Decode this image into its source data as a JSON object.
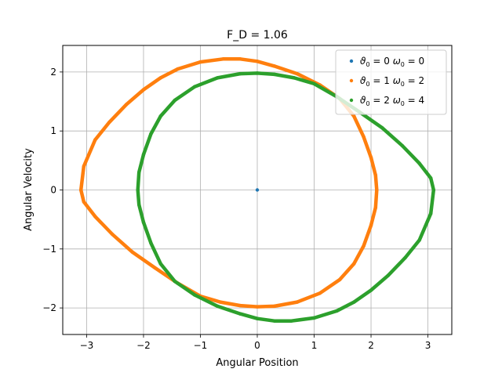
{
  "chart_data": {
    "type": "scatter",
    "title": "F_D = 1.06",
    "xlabel": "Angular Position",
    "ylabel": "Angular Velocity",
    "xlim": [
      -3.42,
      3.42
    ],
    "ylim": [
      -2.45,
      2.45
    ],
    "xticks": [
      -3,
      -2,
      -1,
      0,
      1,
      2,
      3
    ],
    "xtick_labels": [
      "−3",
      "−2",
      "−1",
      "0",
      "1",
      "2",
      "3"
    ],
    "yticks": [
      -2,
      -1,
      0,
      1,
      2
    ],
    "ytick_labels": [
      "−2",
      "−1",
      "0",
      "1",
      "2"
    ],
    "grid": true,
    "legend_position": "top-right",
    "series": [
      {
        "name": "ϑ0 = 0 ω0 = 0",
        "legend": {
          "theta_sub": "0",
          "theta_val": "0",
          "omega_sub": "0",
          "omega_val": "0"
        },
        "color": "#1f77b4",
        "points": [
          [
            0,
            0
          ]
        ]
      },
      {
        "name": "ϑ0 = 1 ω0 = 2",
        "legend": {
          "theta_sub": "0",
          "theta_val": "1",
          "omega_sub": "0",
          "omega_val": "2"
        },
        "color": "#ff7f0e",
        "points": [
          [
            -3.1,
            0.0
          ],
          [
            -3.05,
            0.4
          ],
          [
            -2.85,
            0.85
          ],
          [
            -2.6,
            1.15
          ],
          [
            -2.3,
            1.45
          ],
          [
            -2.0,
            1.7
          ],
          [
            -1.7,
            1.9
          ],
          [
            -1.4,
            2.05
          ],
          [
            -1.0,
            2.17
          ],
          [
            -0.6,
            2.22
          ],
          [
            -0.3,
            2.22
          ],
          [
            0.0,
            2.18
          ],
          [
            0.3,
            2.1
          ],
          [
            0.7,
            1.97
          ],
          [
            1.1,
            1.78
          ],
          [
            1.45,
            1.55
          ],
          [
            1.7,
            1.25
          ],
          [
            1.87,
            0.9
          ],
          [
            2.0,
            0.55
          ],
          [
            2.08,
            0.25
          ],
          [
            2.1,
            0.0
          ],
          [
            2.08,
            -0.3
          ],
          [
            2.0,
            -0.6
          ],
          [
            1.87,
            -0.95
          ],
          [
            1.7,
            -1.25
          ],
          [
            1.45,
            -1.52
          ],
          [
            1.1,
            -1.75
          ],
          [
            0.7,
            -1.9
          ],
          [
            0.3,
            -1.97
          ],
          [
            0.0,
            -1.98
          ],
          [
            -0.3,
            -1.96
          ],
          [
            -0.65,
            -1.9
          ],
          [
            -1.0,
            -1.8
          ],
          [
            -1.4,
            -1.58
          ],
          [
            -1.8,
            -1.32
          ],
          [
            -2.2,
            -1.05
          ],
          [
            -2.55,
            -0.75
          ],
          [
            -2.85,
            -0.45
          ],
          [
            -3.05,
            -0.2
          ],
          [
            -3.1,
            0.0
          ]
        ]
      },
      {
        "name": "ϑ0 = 2 ω0 = 4",
        "legend": {
          "theta_sub": "0",
          "theta_val": "2",
          "omega_sub": "0",
          "omega_val": "4"
        },
        "color": "#2ca02c",
        "points": [
          [
            3.1,
            0.0
          ],
          [
            3.05,
            -0.4
          ],
          [
            2.85,
            -0.85
          ],
          [
            2.6,
            -1.15
          ],
          [
            2.3,
            -1.45
          ],
          [
            2.0,
            -1.7
          ],
          [
            1.7,
            -1.9
          ],
          [
            1.4,
            -2.05
          ],
          [
            1.0,
            -2.17
          ],
          [
            0.6,
            -2.22
          ],
          [
            0.3,
            -2.22
          ],
          [
            0.0,
            -2.18
          ],
          [
            -0.3,
            -2.1
          ],
          [
            -0.7,
            -1.97
          ],
          [
            -1.1,
            -1.78
          ],
          [
            -1.45,
            -1.55
          ],
          [
            -1.7,
            -1.25
          ],
          [
            -1.87,
            -0.9
          ],
          [
            -2.0,
            -0.55
          ],
          [
            -2.08,
            -0.25
          ],
          [
            -2.1,
            0.0
          ],
          [
            -2.08,
            0.3
          ],
          [
            -2.0,
            0.6
          ],
          [
            -1.87,
            0.95
          ],
          [
            -1.7,
            1.25
          ],
          [
            -1.45,
            1.52
          ],
          [
            -1.1,
            1.75
          ],
          [
            -0.7,
            1.9
          ],
          [
            -0.3,
            1.97
          ],
          [
            0.0,
            1.98
          ],
          [
            0.3,
            1.96
          ],
          [
            0.65,
            1.9
          ],
          [
            1.0,
            1.8
          ],
          [
            1.4,
            1.58
          ],
          [
            1.8,
            1.32
          ],
          [
            2.2,
            1.05
          ],
          [
            2.55,
            0.75
          ],
          [
            2.85,
            0.45
          ],
          [
            3.05,
            0.2
          ],
          [
            3.1,
            0.0
          ]
        ]
      }
    ]
  }
}
